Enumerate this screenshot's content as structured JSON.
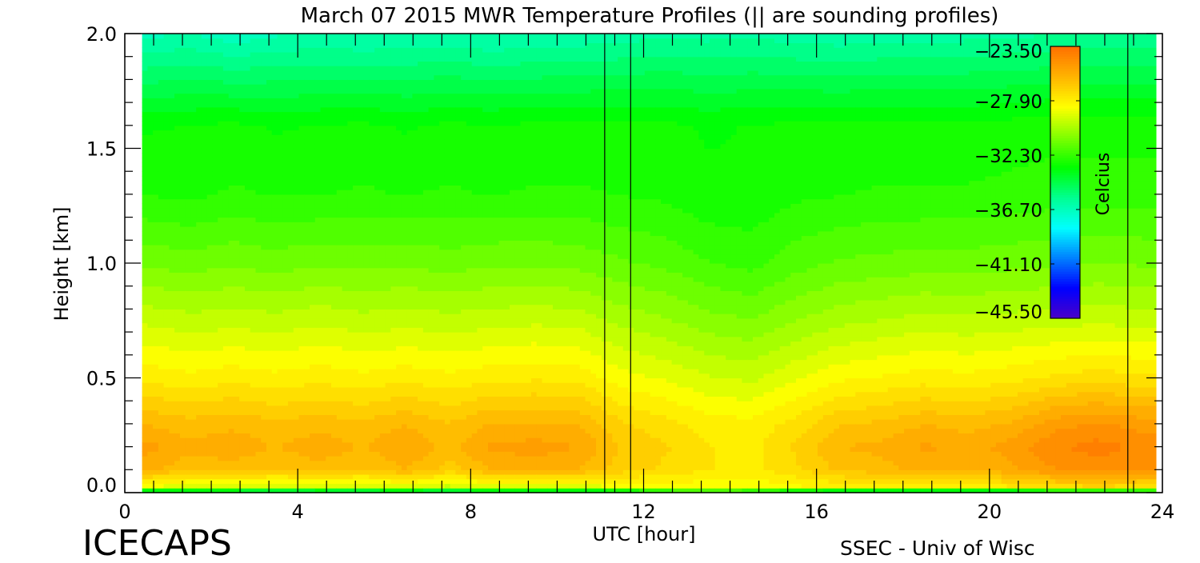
{
  "chart_data": {
    "type": "heatmap",
    "title": "March 07 2015 MWR Temperature Profiles (|| are sounding profiles)",
    "xlabel": "UTC [hour]",
    "ylabel": "Height [km]",
    "xlim": [
      0,
      24
    ],
    "ylim": [
      0,
      2
    ],
    "x_ticks": [
      "0",
      "4",
      "8",
      "12",
      "16",
      "20",
      "24"
    ],
    "y_ticks": [
      "0.0",
      "0.5",
      "1.0",
      "1.5",
      "2.0"
    ],
    "colorbar": {
      "label": "Celcius",
      "range": [
        -45.5,
        -23.5
      ],
      "ticks": [
        "-23.50",
        "-27.90",
        "-32.30",
        "-36.70",
        "-41.10",
        "-45.50"
      ],
      "colors": [
        "#4a00c8",
        "#0000ff",
        "#0080ff",
        "#00ffff",
        "#00ff90",
        "#00ff00",
        "#80ff00",
        "#ffff00",
        "#ffb400",
        "#ff7000"
      ]
    },
    "sounding_times_hour": [
      11.1,
      11.7,
      23.2
    ],
    "data_time_range_hour": [
      0.4,
      23.85
    ],
    "heights_km": [
      0,
      0.03,
      0.1,
      0.2,
      0.3,
      0.5,
      0.75,
      1.0,
      1.3,
      1.6,
      2.0
    ],
    "times_hour": [
      0.5,
      1.5,
      2.5,
      3.5,
      4.5,
      5.5,
      6.5,
      7.5,
      8.5,
      9.5,
      10.5,
      11.5,
      12.5,
      13.5,
      14.5,
      15.5,
      16.5,
      17.5,
      18.5,
      19.5,
      20.5,
      21.5,
      22.5,
      23.5
    ],
    "temperature_c": [
      [
        -36,
        -28.5,
        -25.8,
        -25.2,
        -26.0,
        -27.8,
        -29.4,
        -31.0,
        -32.6,
        -33.2,
        -36.6
      ],
      [
        -36,
        -29.0,
        -26.4,
        -25.8,
        -26.3,
        -28.0,
        -29.6,
        -31.2,
        -32.7,
        -33.1,
        -36.4
      ],
      [
        -36,
        -29.0,
        -26.2,
        -25.6,
        -26.1,
        -27.8,
        -29.5,
        -31.0,
        -32.5,
        -33.0,
        -36.8
      ],
      [
        -36,
        -29.2,
        -26.6,
        -26.0,
        -26.4,
        -28.0,
        -29.6,
        -31.2,
        -32.6,
        -33.2,
        -36.5
      ],
      [
        -36,
        -29.0,
        -26.2,
        -25.6,
        -26.2,
        -27.8,
        -29.4,
        -31.0,
        -32.6,
        -33.1,
        -36.4
      ],
      [
        -36,
        -29.2,
        -26.6,
        -26.0,
        -26.4,
        -28.0,
        -29.6,
        -31.1,
        -32.5,
        -33.0,
        -36.5
      ],
      [
        -36,
        -28.8,
        -26.0,
        -25.4,
        -26.0,
        -27.8,
        -29.5,
        -31.0,
        -32.6,
        -33.2,
        -36.4
      ],
      [
        -36,
        -29.3,
        -26.8,
        -26.2,
        -26.5,
        -28.0,
        -29.6,
        -31.2,
        -32.5,
        -33.0,
        -36.3
      ],
      [
        -36,
        -28.8,
        -25.9,
        -25.3,
        -25.9,
        -27.8,
        -29.5,
        -31.0,
        -32.6,
        -33.1,
        -36.5
      ],
      [
        -36,
        -28.8,
        -25.8,
        -25.2,
        -25.9,
        -27.7,
        -29.4,
        -31.0,
        -32.5,
        -33.0,
        -36.4
      ],
      [
        -36,
        -28.9,
        -26.0,
        -25.4,
        -26.0,
        -27.8,
        -29.5,
        -31.1,
        -32.5,
        -33.0,
        -36.3
      ],
      [
        -35,
        -28.6,
        -26.8,
        -26.6,
        -27.0,
        -28.5,
        -30.0,
        -31.4,
        -32.6,
        -33.0,
        -36.2
      ],
      [
        -34,
        -28.4,
        -27.2,
        -27.0,
        -27.4,
        -28.8,
        -30.3,
        -31.6,
        -32.7,
        -33.0,
        -36.0
      ],
      [
        -33,
        -28.5,
        -27.6,
        -27.6,
        -27.9,
        -29.2,
        -30.7,
        -32.0,
        -33.0,
        -33.2,
        -36.1
      ],
      [
        -34,
        -28.6,
        -27.8,
        -27.8,
        -28.0,
        -29.4,
        -30.9,
        -32.2,
        -33.0,
        -33.1,
        -36.0
      ],
      [
        -35,
        -28.2,
        -27.2,
        -27.0,
        -27.4,
        -28.8,
        -30.4,
        -31.7,
        -32.7,
        -33.0,
        -36.2
      ],
      [
        -36,
        -28.0,
        -26.4,
        -26.0,
        -26.6,
        -28.3,
        -30.0,
        -31.4,
        -32.6,
        -33.0,
        -36.3
      ],
      [
        -36,
        -28.0,
        -26.2,
        -25.8,
        -26.4,
        -28.1,
        -29.8,
        -31.3,
        -32.5,
        -33.0,
        -36.2
      ],
      [
        -36,
        -27.8,
        -25.8,
        -25.3,
        -26.0,
        -27.9,
        -29.6,
        -31.2,
        -32.5,
        -33.0,
        -36.2
      ],
      [
        -36,
        -27.8,
        -26.0,
        -25.6,
        -26.2,
        -28.0,
        -29.7,
        -31.2,
        -32.5,
        -33.0,
        -36.1
      ],
      [
        -36,
        -27.6,
        -25.6,
        -25.2,
        -25.9,
        -27.8,
        -29.6,
        -31.1,
        -32.4,
        -32.9,
        -36.0
      ],
      [
        -35,
        -27.2,
        -24.9,
        -24.4,
        -25.1,
        -27.5,
        -29.5,
        -31.0,
        -32.3,
        -32.8,
        -35.9
      ],
      [
        -35,
        -27.0,
        -24.6,
        -24.1,
        -24.8,
        -27.3,
        -29.4,
        -30.9,
        -32.3,
        -32.8,
        -35.8
      ],
      [
        -35,
        -27.2,
        -24.9,
        -24.4,
        -25.1,
        -27.5,
        -29.5,
        -31.0,
        -32.3,
        -32.8,
        -35.8
      ]
    ]
  },
  "footer": {
    "left_logo": "ICECAPS",
    "right_credit": "SSEC - Univ of Wisc"
  }
}
